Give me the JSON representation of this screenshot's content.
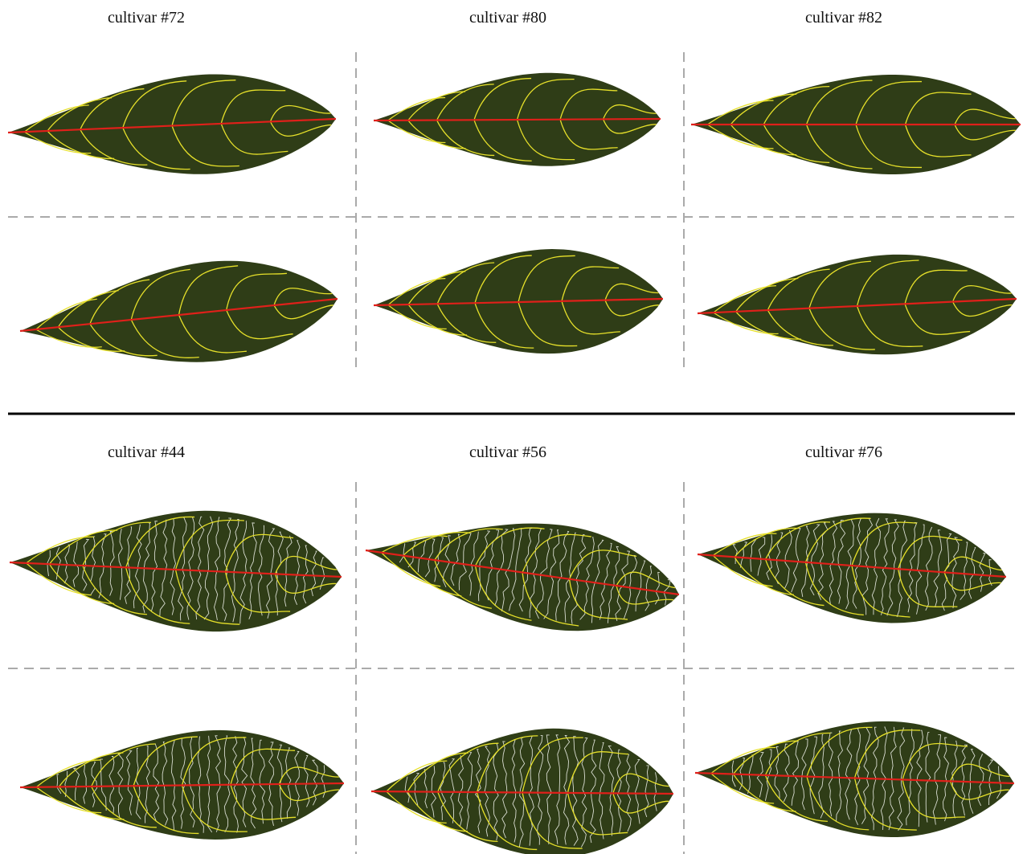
{
  "panels": [
    {
      "label": "cultivar #72"
    },
    {
      "label": "cultivar #80"
    },
    {
      "label": "cultivar #82"
    },
    {
      "label": "cultivar #44"
    },
    {
      "label": "cultivar #56"
    },
    {
      "label": "cultivar #76"
    }
  ]
}
